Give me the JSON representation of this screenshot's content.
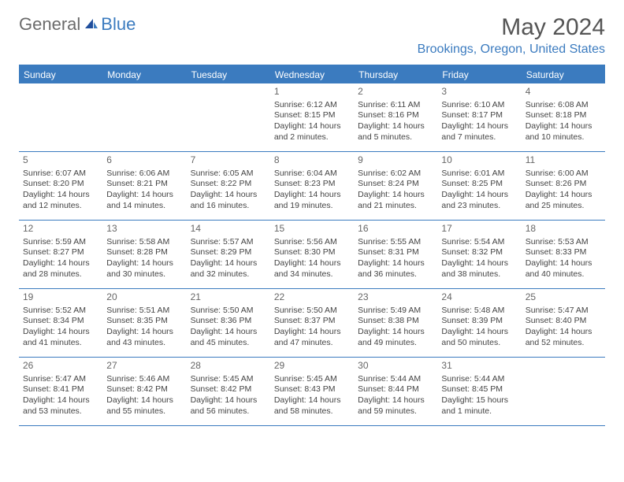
{
  "logo": {
    "part1": "General",
    "part2": "Blue"
  },
  "title": "May 2024",
  "location": "Brookings, Oregon, United States",
  "colors": {
    "accent": "#3b7bbf",
    "text_gray": "#555555",
    "cell_text": "#444444",
    "bg": "#ffffff"
  },
  "day_headers": [
    "Sunday",
    "Monday",
    "Tuesday",
    "Wednesday",
    "Thursday",
    "Friday",
    "Saturday"
  ],
  "weeks": [
    [
      null,
      null,
      null,
      {
        "n": "1",
        "sr": "Sunrise: 6:12 AM",
        "ss": "Sunset: 8:15 PM",
        "d1": "Daylight: 14 hours",
        "d2": "and 2 minutes."
      },
      {
        "n": "2",
        "sr": "Sunrise: 6:11 AM",
        "ss": "Sunset: 8:16 PM",
        "d1": "Daylight: 14 hours",
        "d2": "and 5 minutes."
      },
      {
        "n": "3",
        "sr": "Sunrise: 6:10 AM",
        "ss": "Sunset: 8:17 PM",
        "d1": "Daylight: 14 hours",
        "d2": "and 7 minutes."
      },
      {
        "n": "4",
        "sr": "Sunrise: 6:08 AM",
        "ss": "Sunset: 8:18 PM",
        "d1": "Daylight: 14 hours",
        "d2": "and 10 minutes."
      }
    ],
    [
      {
        "n": "5",
        "sr": "Sunrise: 6:07 AM",
        "ss": "Sunset: 8:20 PM",
        "d1": "Daylight: 14 hours",
        "d2": "and 12 minutes."
      },
      {
        "n": "6",
        "sr": "Sunrise: 6:06 AM",
        "ss": "Sunset: 8:21 PM",
        "d1": "Daylight: 14 hours",
        "d2": "and 14 minutes."
      },
      {
        "n": "7",
        "sr": "Sunrise: 6:05 AM",
        "ss": "Sunset: 8:22 PM",
        "d1": "Daylight: 14 hours",
        "d2": "and 16 minutes."
      },
      {
        "n": "8",
        "sr": "Sunrise: 6:04 AM",
        "ss": "Sunset: 8:23 PM",
        "d1": "Daylight: 14 hours",
        "d2": "and 19 minutes."
      },
      {
        "n": "9",
        "sr": "Sunrise: 6:02 AM",
        "ss": "Sunset: 8:24 PM",
        "d1": "Daylight: 14 hours",
        "d2": "and 21 minutes."
      },
      {
        "n": "10",
        "sr": "Sunrise: 6:01 AM",
        "ss": "Sunset: 8:25 PM",
        "d1": "Daylight: 14 hours",
        "d2": "and 23 minutes."
      },
      {
        "n": "11",
        "sr": "Sunrise: 6:00 AM",
        "ss": "Sunset: 8:26 PM",
        "d1": "Daylight: 14 hours",
        "d2": "and 25 minutes."
      }
    ],
    [
      {
        "n": "12",
        "sr": "Sunrise: 5:59 AM",
        "ss": "Sunset: 8:27 PM",
        "d1": "Daylight: 14 hours",
        "d2": "and 28 minutes."
      },
      {
        "n": "13",
        "sr": "Sunrise: 5:58 AM",
        "ss": "Sunset: 8:28 PM",
        "d1": "Daylight: 14 hours",
        "d2": "and 30 minutes."
      },
      {
        "n": "14",
        "sr": "Sunrise: 5:57 AM",
        "ss": "Sunset: 8:29 PM",
        "d1": "Daylight: 14 hours",
        "d2": "and 32 minutes."
      },
      {
        "n": "15",
        "sr": "Sunrise: 5:56 AM",
        "ss": "Sunset: 8:30 PM",
        "d1": "Daylight: 14 hours",
        "d2": "and 34 minutes."
      },
      {
        "n": "16",
        "sr": "Sunrise: 5:55 AM",
        "ss": "Sunset: 8:31 PM",
        "d1": "Daylight: 14 hours",
        "d2": "and 36 minutes."
      },
      {
        "n": "17",
        "sr": "Sunrise: 5:54 AM",
        "ss": "Sunset: 8:32 PM",
        "d1": "Daylight: 14 hours",
        "d2": "and 38 minutes."
      },
      {
        "n": "18",
        "sr": "Sunrise: 5:53 AM",
        "ss": "Sunset: 8:33 PM",
        "d1": "Daylight: 14 hours",
        "d2": "and 40 minutes."
      }
    ],
    [
      {
        "n": "19",
        "sr": "Sunrise: 5:52 AM",
        "ss": "Sunset: 8:34 PM",
        "d1": "Daylight: 14 hours",
        "d2": "and 41 minutes."
      },
      {
        "n": "20",
        "sr": "Sunrise: 5:51 AM",
        "ss": "Sunset: 8:35 PM",
        "d1": "Daylight: 14 hours",
        "d2": "and 43 minutes."
      },
      {
        "n": "21",
        "sr": "Sunrise: 5:50 AM",
        "ss": "Sunset: 8:36 PM",
        "d1": "Daylight: 14 hours",
        "d2": "and 45 minutes."
      },
      {
        "n": "22",
        "sr": "Sunrise: 5:50 AM",
        "ss": "Sunset: 8:37 PM",
        "d1": "Daylight: 14 hours",
        "d2": "and 47 minutes."
      },
      {
        "n": "23",
        "sr": "Sunrise: 5:49 AM",
        "ss": "Sunset: 8:38 PM",
        "d1": "Daylight: 14 hours",
        "d2": "and 49 minutes."
      },
      {
        "n": "24",
        "sr": "Sunrise: 5:48 AM",
        "ss": "Sunset: 8:39 PM",
        "d1": "Daylight: 14 hours",
        "d2": "and 50 minutes."
      },
      {
        "n": "25",
        "sr": "Sunrise: 5:47 AM",
        "ss": "Sunset: 8:40 PM",
        "d1": "Daylight: 14 hours",
        "d2": "and 52 minutes."
      }
    ],
    [
      {
        "n": "26",
        "sr": "Sunrise: 5:47 AM",
        "ss": "Sunset: 8:41 PM",
        "d1": "Daylight: 14 hours",
        "d2": "and 53 minutes."
      },
      {
        "n": "27",
        "sr": "Sunrise: 5:46 AM",
        "ss": "Sunset: 8:42 PM",
        "d1": "Daylight: 14 hours",
        "d2": "and 55 minutes."
      },
      {
        "n": "28",
        "sr": "Sunrise: 5:45 AM",
        "ss": "Sunset: 8:42 PM",
        "d1": "Daylight: 14 hours",
        "d2": "and 56 minutes."
      },
      {
        "n": "29",
        "sr": "Sunrise: 5:45 AM",
        "ss": "Sunset: 8:43 PM",
        "d1": "Daylight: 14 hours",
        "d2": "and 58 minutes."
      },
      {
        "n": "30",
        "sr": "Sunrise: 5:44 AM",
        "ss": "Sunset: 8:44 PM",
        "d1": "Daylight: 14 hours",
        "d2": "and 59 minutes."
      },
      {
        "n": "31",
        "sr": "Sunrise: 5:44 AM",
        "ss": "Sunset: 8:45 PM",
        "d1": "Daylight: 15 hours",
        "d2": "and 1 minute."
      },
      null
    ]
  ]
}
